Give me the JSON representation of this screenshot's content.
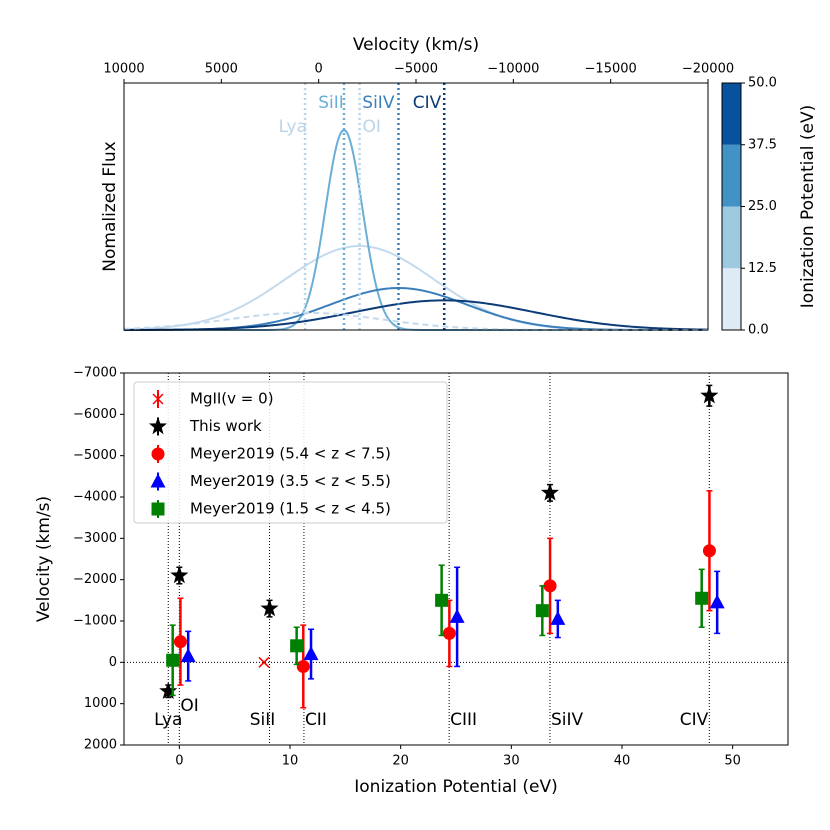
{
  "chart_data": [
    {
      "type": "profile",
      "xlabel": "Velocity (km/s)",
      "ylabel": "Nomalized Flux",
      "xlim": [
        10000,
        -20000
      ],
      "xticks": [
        10000,
        5000,
        0,
        {
          "value": -5000,
          "label": "−5000"
        },
        {
          "value": -10000,
          "label": "−10000"
        },
        {
          "value": -15000,
          "label": "−15000"
        },
        {
          "value": -20000,
          "label": "−20000"
        }
      ],
      "ylim": [
        0,
        1
      ],
      "profiles": [
        {
          "color": "#c3daee",
          "center": -2100,
          "sigma": 3800,
          "peak": 0.34,
          "dashed": false
        },
        {
          "color": "#6aaed6",
          "center": -1300,
          "sigma": 950,
          "peak": 0.81,
          "dashed": false
        },
        {
          "color": "#3a7fbc",
          "center": -4100,
          "sigma": 3500,
          "peak": 0.17,
          "dashed": false
        },
        {
          "color": "#0c3b78",
          "center": -6450,
          "sigma": 4600,
          "peak": 0.12,
          "dashed": false
        },
        {
          "color": "#c3daee",
          "center": 700,
          "sigma": 4000,
          "peak": 0.07,
          "dashed": true
        }
      ],
      "lines": [
        {
          "label": "Lya",
          "x": 700,
          "color": "#b9d5ea"
        },
        {
          "label": "SiII",
          "x": -1300,
          "color": "#6aaed6"
        },
        {
          "label": "OI",
          "x": -2100,
          "color": "#b9d5ea"
        },
        {
          "label": "SiIV",
          "x": -4100,
          "color": "#3a7fbc"
        },
        {
          "label": "CIV",
          "x": -6450,
          "color": "#0c3b78"
        }
      ],
      "colorbar": {
        "label": "Ionization Potential (eV)",
        "lim": [
          0,
          50
        ],
        "ticks": [
          {
            "value": 0,
            "label": "0.0"
          },
          {
            "value": 12.5,
            "label": "12.5"
          },
          {
            "value": 25,
            "label": "25.0"
          },
          {
            "value": 37.5,
            "label": "37.5"
          },
          {
            "value": 50,
            "label": "50.0"
          }
        ],
        "colors": [
          "#deebf7",
          "#9ecae1",
          "#4292c6",
          "#08519c"
        ]
      }
    },
    {
      "type": "errorbar",
      "xlabel": "Ionization Potential (eV)",
      "ylabel": "Velocity (km/s)",
      "xlim": [
        -5,
        55
      ],
      "xticks": [
        0,
        10,
        20,
        30,
        40,
        50
      ],
      "ylim": [
        2000,
        -7000
      ],
      "yticks": [
        2000,
        1000,
        0,
        {
          "value": -1000,
          "label": "−1000"
        },
        {
          "value": -2000,
          "label": "−2000"
        },
        {
          "value": -3000,
          "label": "−3000"
        },
        {
          "value": -4000,
          "label": "−4000"
        },
        {
          "value": -5000,
          "label": "−5000"
        },
        {
          "value": -6000,
          "label": "−6000"
        },
        {
          "value": -7000,
          "label": "−7000"
        }
      ],
      "hline": 0,
      "lines": [
        {
          "label": "Lya",
          "x": -1
        },
        {
          "label": "OI",
          "x": 0
        },
        {
          "label": "SiII",
          "x": 8.15
        },
        {
          "label": "CII",
          "x": 11.26
        },
        {
          "label": "CIII",
          "x": 24.38
        },
        {
          "label": "SiIV",
          "x": 33.49
        },
        {
          "label": "CIV",
          "x": 47.89
        }
      ],
      "legend": "upper left",
      "series": [
        {
          "name": "MgII(v = 0)",
          "color": "#ff0000",
          "marker": "x",
          "x": [
            7.65
          ],
          "values": [
            0
          ]
        },
        {
          "name": "This work",
          "color": "#000000",
          "marker": "star",
          "x": [
            -1,
            0,
            8.15,
            33.49,
            47.89
          ],
          "values": [
            700,
            -2100,
            -1300,
            -4100,
            -6450
          ],
          "errors": [
            150,
            200,
            200,
            200,
            250
          ]
        },
        {
          "name": "Meyer2019 (5.4 < z < 7.5)",
          "color": "#ff0000",
          "marker": "circle",
          "x": [
            0.1,
            11.2,
            24.4,
            33.5,
            47.9
          ],
          "values": [
            -500,
            100,
            -700,
            -1850,
            -2700
          ],
          "errors": [
            1050,
            1000,
            800,
            1150,
            1450
          ]
        },
        {
          "name": "Meyer2019 (3.5 < z < 5.5)",
          "color": "#0000ff",
          "marker": "triangle",
          "x": [
            0.8,
            11.9,
            25.1,
            34.2,
            48.6
          ],
          "values": [
            -150,
            -200,
            -1100,
            -1050,
            -1450
          ],
          "errors": [
            600,
            600,
            1200,
            450,
            750
          ]
        },
        {
          "name": "Meyer2019 (1.5 < z < 4.5)",
          "color": "#008000",
          "marker": "square",
          "x": [
            -0.6,
            10.6,
            23.7,
            32.8,
            47.2
          ],
          "values": [
            -50,
            -400,
            -1500,
            -1250,
            -1550
          ],
          "errors": [
            850,
            450,
            850,
            600,
            700
          ]
        }
      ]
    }
  ]
}
